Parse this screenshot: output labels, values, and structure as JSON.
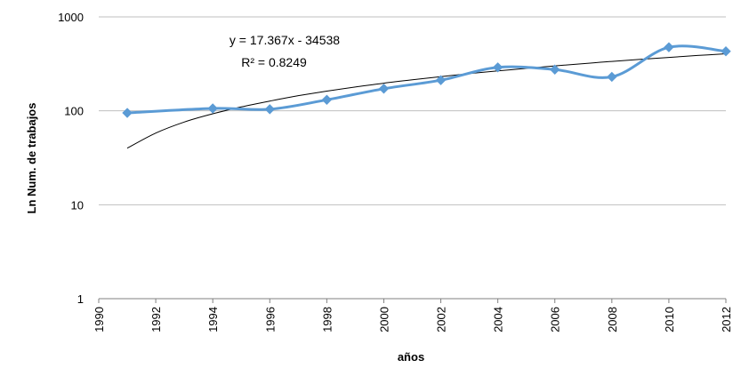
{
  "chart_data": {
    "type": "line",
    "title": "",
    "xlabel": "años",
    "ylabel": "Ln Num. de trabajos",
    "y_scale": "log",
    "xlim": [
      1990,
      2012
    ],
    "ylim": [
      1,
      1000
    ],
    "x_ticks": [
      "1990",
      "1992",
      "1994",
      "1996",
      "1998",
      "2000",
      "2002",
      "2004",
      "2006",
      "2008",
      "2010",
      "2012"
    ],
    "y_ticks": [
      "1",
      "10",
      "100",
      "1000"
    ],
    "grid": "horizontal",
    "legend": "none",
    "series": [
      {
        "x": [
          1991,
          1994,
          1996,
          1998,
          2000,
          2002,
          2004,
          2006,
          2008,
          2010,
          2012
        ],
        "y": [
          95,
          106,
          104,
          131,
          172,
          212,
          290,
          275,
          230,
          475,
          430
        ],
        "color": "#5b9bd5",
        "marker": "diamond",
        "smooth": true
      }
    ],
    "trendline": {
      "type": "logarithmic",
      "equation": "y = 17.367x - 34538",
      "r_squared": "R² = 0.8249",
      "color": "#000000",
      "x": [
        1991,
        1992,
        1993,
        1994,
        1995,
        1996,
        1997,
        1998,
        1999,
        2000,
        2001,
        2002,
        2003,
        2004,
        2005,
        2006,
        2007,
        2008,
        2009,
        2010,
        2011,
        2012
      ],
      "y": [
        40,
        58,
        76,
        93,
        110,
        127,
        145,
        162,
        179,
        197,
        214,
        231,
        249,
        266,
        283,
        301,
        318,
        336,
        353,
        370,
        388,
        405
      ]
    }
  }
}
